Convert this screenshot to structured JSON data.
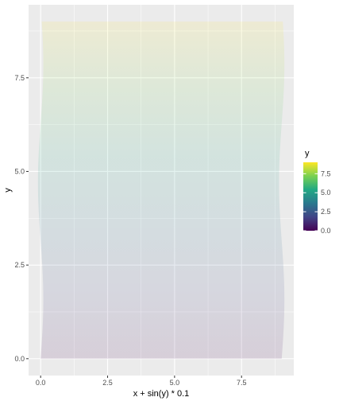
{
  "chart_data": {
    "type": "area",
    "title": "",
    "xlabel": "x + sin(y) * 0.1",
    "ylabel": "y",
    "xlim": [
      -0.45,
      9.45
    ],
    "ylim": [
      -0.45,
      9.45
    ],
    "x_ticks": [
      0.0,
      2.5,
      5.0,
      7.5
    ],
    "x_tick_labels": [
      "0.0",
      "2.5",
      "5.0",
      "7.5"
    ],
    "y_ticks": [
      0.0,
      2.5,
      5.0,
      7.5
    ],
    "y_tick_labels": [
      "0.0",
      "2.5",
      "5.0",
      "7.5"
    ],
    "grid": true,
    "panel_background": "#ebebeb",
    "grid_color": "#ffffff",
    "fill_opacity": 0.12,
    "band": {
      "y_min": 0,
      "y_max": 9,
      "x_left_base": 0,
      "x_right_base": 9,
      "x_offset_formula": "sin(y) * 0.1"
    },
    "legend": {
      "title": "y",
      "position": "right",
      "ticks": [
        0.0,
        2.5,
        5.0,
        7.5
      ],
      "tick_labels": [
        "0.0",
        "2.5",
        "5.0",
        "7.5"
      ],
      "range": [
        0,
        9
      ],
      "colormap": "viridis",
      "colors": [
        "#440154",
        "#414487",
        "#2a788e",
        "#22a884",
        "#7ad151",
        "#fde725"
      ]
    }
  }
}
